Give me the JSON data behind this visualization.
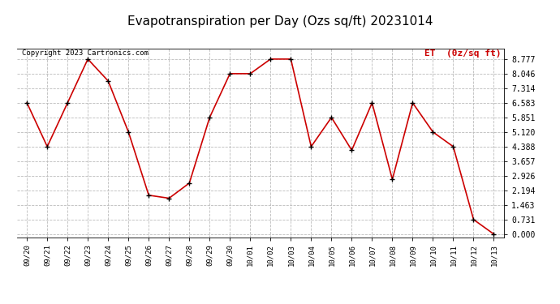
{
  "title": "Evapotranspiration per Day (Ozs sq/ft) 20231014",
  "legend_label": "ET  (0z/sq ft)",
  "copyright_text": "Copyright 2023 Cartronics.com",
  "x_labels": [
    "09/20",
    "09/21",
    "09/22",
    "09/23",
    "09/24",
    "09/25",
    "09/26",
    "09/27",
    "09/28",
    "09/29",
    "09/30",
    "10/01",
    "10/02",
    "10/03",
    "10/04",
    "10/05",
    "10/06",
    "10/07",
    "10/08",
    "10/09",
    "10/10",
    "10/11",
    "10/12",
    "10/13"
  ],
  "y_values": [
    6.583,
    4.388,
    6.583,
    8.777,
    7.68,
    5.12,
    1.95,
    1.8,
    2.56,
    5.851,
    8.046,
    8.046,
    8.777,
    8.777,
    4.388,
    5.851,
    4.207,
    6.583,
    2.743,
    6.583,
    5.12,
    4.388,
    0.731,
    0.0
  ],
  "y_ticks": [
    0.0,
    0.731,
    1.463,
    2.194,
    2.926,
    3.657,
    4.388,
    5.12,
    5.851,
    6.583,
    7.314,
    8.046,
    8.777
  ],
  "ylim": [
    -0.15,
    9.3
  ],
  "line_color": "#cc0000",
  "marker_color": "#000000",
  "grid_color": "#bbbbbb",
  "background_color": "#ffffff",
  "title_fontsize": 11,
  "legend_color": "#cc0000",
  "copyright_color": "#000000",
  "fig_width": 6.9,
  "fig_height": 3.75,
  "dpi": 100
}
